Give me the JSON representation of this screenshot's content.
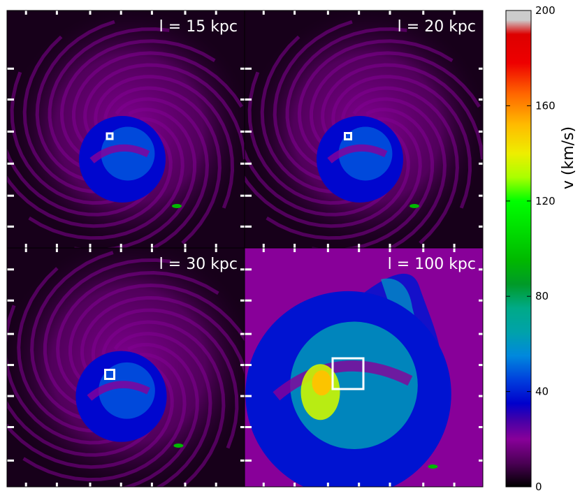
{
  "chart_data": {
    "type": "heatmap",
    "description_colormap": "nipy_spectral",
    "panels": [
      {
        "label": "l = 15 kpc",
        "zoom": 1.0,
        "marker_size": 8
      },
      {
        "label": "l = 20 kpc",
        "zoom": 1.0,
        "marker_size": 9
      },
      {
        "label": "l = 30 kpc",
        "zoom": 1.05,
        "marker_size": 13
      },
      {
        "label": "l = 100 kpc",
        "zoom": 1.55,
        "marker_size": 44
      }
    ],
    "colorbar": {
      "label": "v (km/s)",
      "range": [
        0,
        200
      ],
      "ticks": [
        "0",
        "40",
        "80",
        "120",
        "160",
        "200"
      ],
      "tick_values": [
        0,
        40,
        80,
        120,
        160,
        200
      ],
      "colormap": [
        {
          "v": 0,
          "color": "#000000"
        },
        {
          "v": 10,
          "color": "#4b0055"
        },
        {
          "v": 20,
          "color": "#880099"
        },
        {
          "v": 28,
          "color": "#4400a8"
        },
        {
          "v": 35,
          "color": "#0000cc"
        },
        {
          "v": 45,
          "color": "#0040dd"
        },
        {
          "v": 55,
          "color": "#0088dd"
        },
        {
          "v": 65,
          "color": "#00a2aa"
        },
        {
          "v": 75,
          "color": "#00aa88"
        },
        {
          "v": 85,
          "color": "#009a28"
        },
        {
          "v": 95,
          "color": "#00b800"
        },
        {
          "v": 108,
          "color": "#00de00"
        },
        {
          "v": 120,
          "color": "#00ff00"
        },
        {
          "v": 130,
          "color": "#aaff00"
        },
        {
          "v": 140,
          "color": "#eeee00"
        },
        {
          "v": 152,
          "color": "#ffbb00"
        },
        {
          "v": 165,
          "color": "#ff6600"
        },
        {
          "v": 178,
          "color": "#ee0000"
        },
        {
          "v": 190,
          "color": "#dd0000"
        },
        {
          "v": 196,
          "color": "#cccccc"
        },
        {
          "v": 200,
          "color": "#cccccc"
        }
      ]
    }
  }
}
